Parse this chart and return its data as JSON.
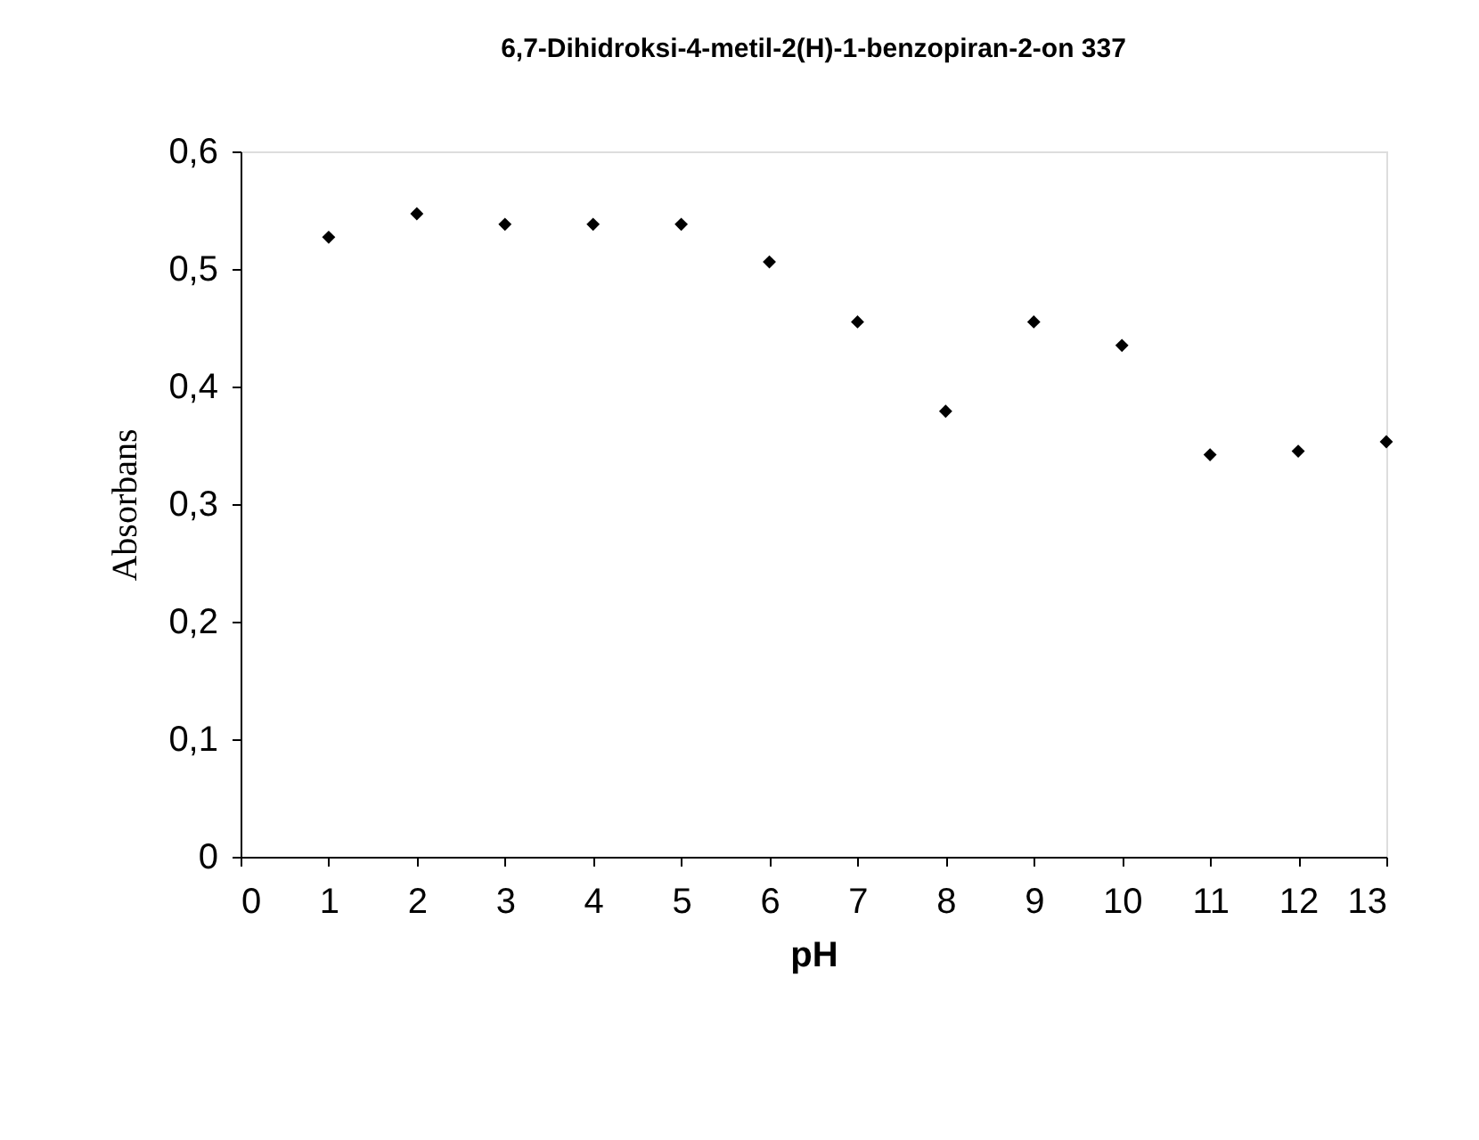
{
  "chart_data": {
    "type": "scatter",
    "title": "6,7-Dihidroksi-4-metil-2(H)-1-benzopiran-2-on  337",
    "xlabel": "pH",
    "ylabel": "Absorbans",
    "x": [
      1,
      2,
      3,
      4,
      5,
      6,
      7,
      8,
      9,
      10,
      11,
      12,
      13
    ],
    "series": [
      {
        "color": "#000000",
        "values": [
          0.527,
          0.547,
          0.538,
          0.538,
          0.538,
          0.506,
          0.455,
          0.379,
          0.455,
          0.435,
          0.342,
          0.345,
          0.353
        ]
      }
    ],
    "xlim": [
      0,
      13
    ],
    "xticks": [
      0,
      1,
      2,
      3,
      4,
      5,
      6,
      7,
      8,
      9,
      10,
      11,
      12,
      13
    ],
    "ylim": [
      0,
      0.6
    ],
    "yticks": [
      0,
      {
        "value": 0.1,
        "label": "0,1"
      },
      {
        "value": 0.2,
        "label": "0,2"
      },
      {
        "value": 0.3,
        "label": "0,3"
      },
      {
        "value": 0.4,
        "label": "0,4"
      },
      {
        "value": 0.5,
        "label": "0,5"
      },
      {
        "value": 0.6,
        "label": "0,6"
      }
    ],
    "grid": false,
    "legend": false,
    "marker": "diamond"
  }
}
